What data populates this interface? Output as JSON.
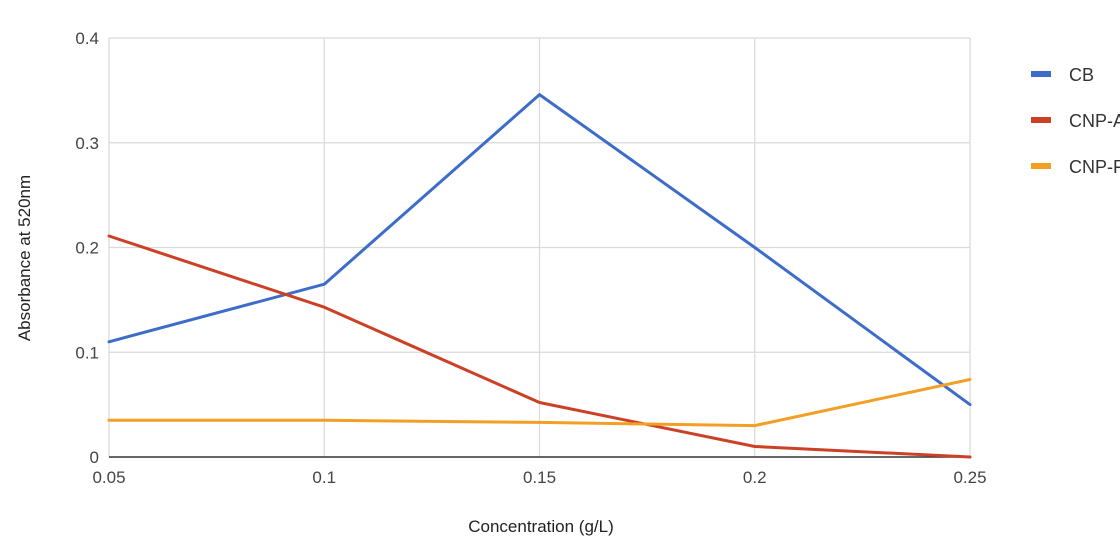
{
  "chart_data": {
    "type": "line",
    "title": "",
    "xlabel": "Concentration (g/L)",
    "ylabel": "Absorbance at 520nm",
    "x": [
      0.05,
      0.1,
      0.15,
      0.2,
      0.25
    ],
    "x_tick_labels": [
      "0.05",
      "0.1",
      "0.15",
      "0.2",
      "0.25"
    ],
    "xlim": [
      0.05,
      0.25
    ],
    "ylim": [
      0,
      0.4
    ],
    "y_ticks": [
      0,
      0.1,
      0.2,
      0.3,
      0.4
    ],
    "y_tick_labels": [
      "0",
      "0.1",
      "0.2",
      "0.3",
      "0.4"
    ],
    "grid": true,
    "legend_position": "right",
    "series": [
      {
        "name": "CB",
        "color": "#3d6cc9",
        "values": [
          0.11,
          0.165,
          0.346,
          0.2,
          0.05
        ]
      },
      {
        "name": "CNP-A",
        "color": "#cc4125",
        "values": [
          0.211,
          0.143,
          0.052,
          0.01,
          0.0
        ]
      },
      {
        "name": "CNP-F",
        "color": "#f29f24",
        "values": [
          0.035,
          0.035,
          0.033,
          0.03,
          0.074
        ]
      }
    ]
  }
}
